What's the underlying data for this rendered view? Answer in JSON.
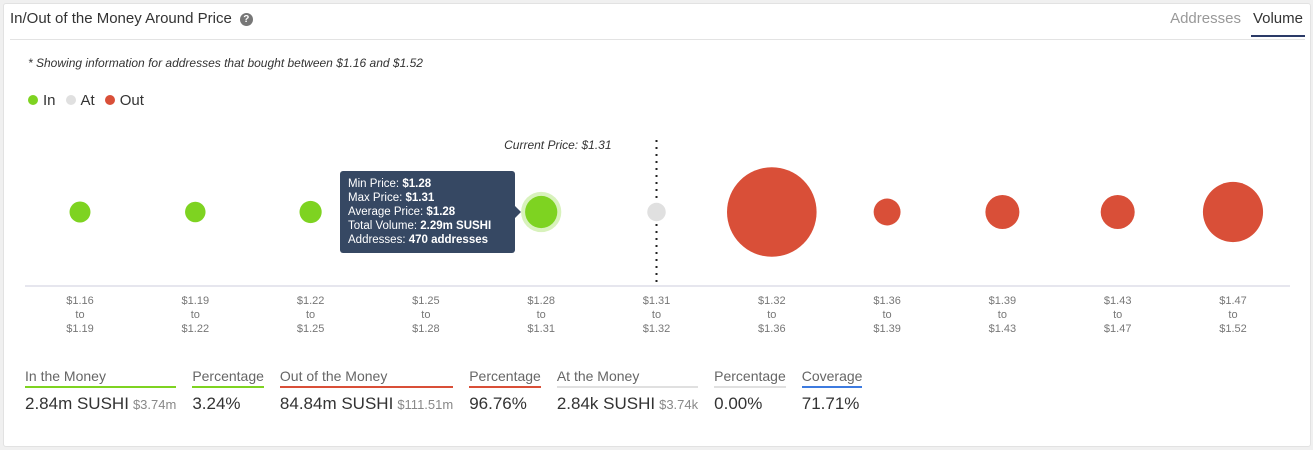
{
  "header": {
    "title": "In/Out of the Money Around Price",
    "help_icon": "question-circle-icon",
    "tabs": [
      {
        "label": "Addresses",
        "active": false
      },
      {
        "label": "Volume",
        "active": true
      }
    ]
  },
  "note": "* Showing information for addresses that bought between $1.16 and $1.52",
  "colors": {
    "in": "#7ed321",
    "at": "#e0e0e0",
    "out": "#d94f38",
    "coverage": "#3d7be0"
  },
  "chart_data": {
    "type": "bubble",
    "legend": [
      {
        "name": "In",
        "color": "#7ed321"
      },
      {
        "name": "At",
        "color": "#e0e0e0"
      },
      {
        "name": "Out",
        "color": "#d94f38"
      }
    ],
    "legend_placement": "top-left",
    "current_price_label": "Current Price: $1.31",
    "bins": [
      {
        "from": "$1.16",
        "to": "$1.19",
        "status": "in",
        "volume_m": 0.1
      },
      {
        "from": "$1.19",
        "to": "$1.22",
        "status": "in",
        "volume_m": 0.07
      },
      {
        "from": "$1.22",
        "to": "$1.25",
        "status": "in",
        "volume_m": 0.2
      },
      {
        "from": "$1.25",
        "to": "$1.28",
        "status": "in",
        "volume_m": 0.18
      },
      {
        "from": "$1.28",
        "to": "$1.31",
        "status": "in",
        "volume_m": 2.29,
        "highlighted": true
      },
      {
        "from": "$1.31",
        "to": "$1.32",
        "status": "at",
        "volume_m": 0.00284
      },
      {
        "from": "$1.32",
        "to": "$1.36",
        "status": "out",
        "volume_m": 58
      },
      {
        "from": "$1.36",
        "to": "$1.39",
        "status": "out",
        "volume_m": 0.9
      },
      {
        "from": "$1.39",
        "to": "$1.43",
        "status": "out",
        "volume_m": 2.9
      },
      {
        "from": "$1.43",
        "to": "$1.47",
        "status": "out",
        "volume_m": 2.9
      },
      {
        "from": "$1.47",
        "to": "$1.52",
        "status": "out",
        "volume_m": 20.1
      }
    ],
    "to_word": "to",
    "tooltip": {
      "rows": [
        {
          "k": "Min Price:",
          "v": "$1.28"
        },
        {
          "k": "Max Price:",
          "v": "$1.31"
        },
        {
          "k": "Average Price:",
          "v": "$1.28"
        },
        {
          "k": "Total Volume:",
          "v": "2.29m SUSHI"
        },
        {
          "k": "Addresses:",
          "v": "470 addresses"
        }
      ]
    }
  },
  "stats": [
    {
      "label": "In the Money",
      "value": "2.84m SUSHI",
      "sub": "$3.74m",
      "color": "#7ed321"
    },
    {
      "label": "Percentage",
      "value": "3.24%",
      "color": "#7ed321"
    },
    {
      "label": "Out of the Money",
      "value": "84.84m SUSHI",
      "sub": "$111.51m",
      "color": "#d94f38"
    },
    {
      "label": "Percentage",
      "value": "96.76%",
      "color": "#d94f38"
    },
    {
      "label": "At the Money",
      "value": "2.84k SUSHI",
      "sub": "$3.74k",
      "color": "#e0e0e0"
    },
    {
      "label": "Percentage",
      "value": "0.00%",
      "color": "#e0e0e0"
    },
    {
      "label": "Coverage",
      "value": "71.71%",
      "color": "#3d7be0"
    }
  ]
}
